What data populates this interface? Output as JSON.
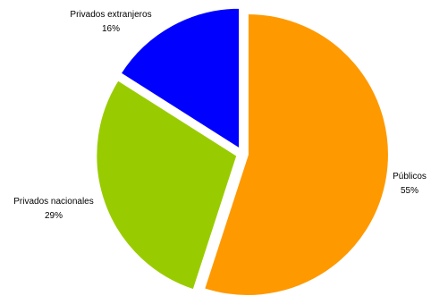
{
  "chart_data": {
    "type": "pie",
    "title": "",
    "slices": [
      {
        "label": "Públicos",
        "value": 55,
        "value_label": "55%",
        "color": "#FF9900"
      },
      {
        "label": "Privados nacionales",
        "value": 29,
        "value_label": "29%",
        "color": "#99CC00"
      },
      {
        "label": "Privados extranjeros",
        "value": 16,
        "value_label": "16%",
        "color": "#0000FF"
      }
    ],
    "start_angle_deg": 0,
    "direction": "clockwise",
    "exploded": true,
    "legend": "none",
    "labels_outside": true
  }
}
